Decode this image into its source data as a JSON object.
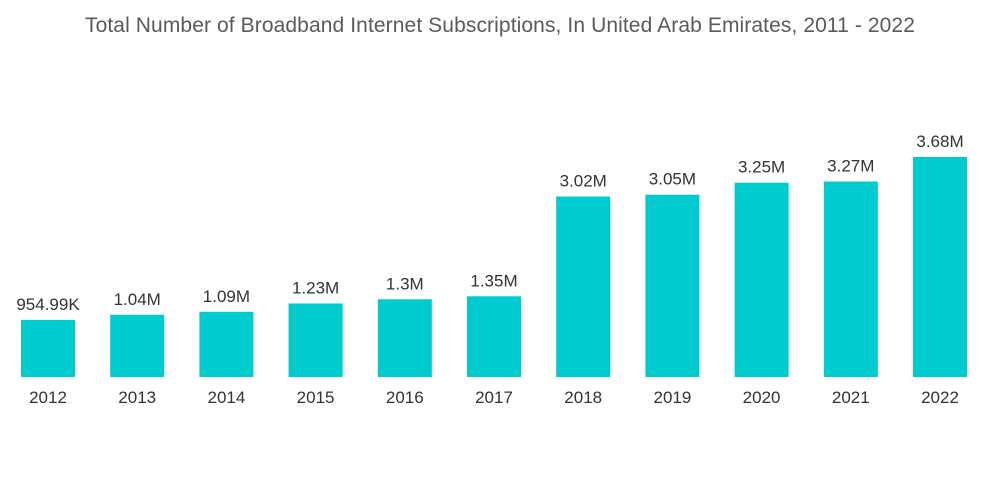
{
  "chart_data": {
    "type": "bar",
    "title": "Total Number of Broadband Internet Subscriptions, In United Arab Emirates, 2011 - 2022",
    "xlabel": "",
    "ylabel": "",
    "categories": [
      "2012",
      "2013",
      "2014",
      "2015",
      "2016",
      "2017",
      "2018",
      "2019",
      "2020",
      "2021",
      "2022"
    ],
    "values": [
      954990,
      1040000,
      1090000,
      1230000,
      1300000,
      1350000,
      3020000,
      3050000,
      3250000,
      3270000,
      3680000
    ],
    "value_labels": [
      "954.99K",
      "1.04M",
      "1.09M",
      "1.23M",
      "1.3M",
      "1.35M",
      "3.02M",
      "3.05M",
      "3.25M",
      "3.27M",
      "3.68M"
    ],
    "ylim": [
      0,
      3680000
    ],
    "grid": false,
    "bar_color": "#00cbcf"
  }
}
